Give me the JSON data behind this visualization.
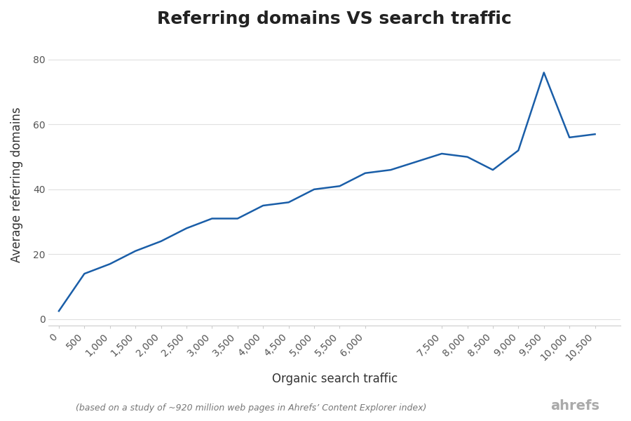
{
  "title": "Referring domains VS search traffic",
  "xlabel": "Organic search traffic",
  "ylabel": "Average referring domains",
  "footnote": "(based on a study of ~920 million web pages in Ahrefs’ Content Explorer index)",
  "branding": "ahrefs",
  "line_color": "#1a5ea8",
  "background_color": "#ffffff",
  "x": [
    0,
    500,
    1000,
    1500,
    2000,
    2500,
    3000,
    3500,
    4000,
    4500,
    5000,
    5500,
    6000,
    6500,
    7500,
    8000,
    8500,
    9000,
    9500,
    10000,
    10500
  ],
  "y": [
    2.5,
    14,
    17,
    21,
    24,
    28,
    31,
    31,
    35,
    36,
    40,
    41,
    45,
    46,
    51,
    50,
    46,
    52,
    76,
    56,
    57
  ],
  "xlim": [
    -200,
    11000
  ],
  "ylim": [
    -2,
    85
  ],
  "yticks": [
    0,
    20,
    40,
    60,
    80
  ],
  "xticks": [
    0,
    500,
    1000,
    1500,
    2000,
    2500,
    3000,
    3500,
    4000,
    4500,
    5000,
    5500,
    6000,
    7500,
    8000,
    8500,
    9000,
    9500,
    10000,
    10500
  ],
  "title_fontsize": 18,
  "label_fontsize": 12,
  "tick_fontsize": 10,
  "footnote_fontsize": 9,
  "branding_fontsize": 14,
  "grid_color": "#e0e0e0",
  "tick_color": "#555555",
  "spine_color": "#cccccc"
}
